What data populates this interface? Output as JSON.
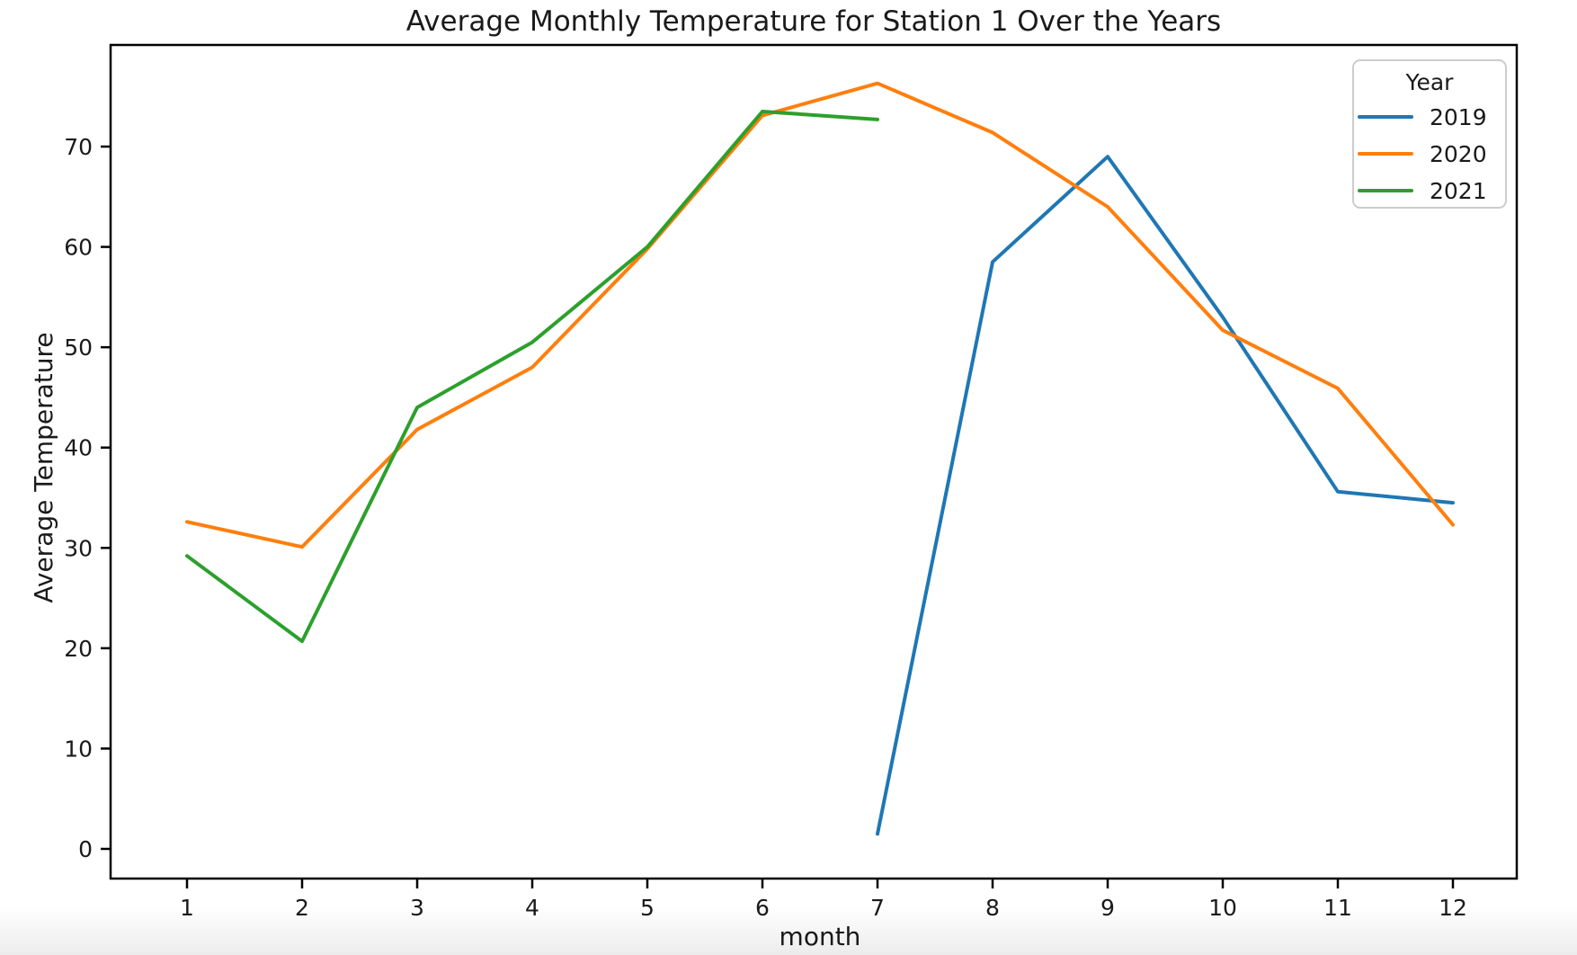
{
  "chart_data": {
    "type": "line",
    "title": "Average Monthly Temperature for Station 1 Over the Years",
    "xlabel": "month",
    "ylabel": "Average Temperature",
    "x": [
      1,
      2,
      3,
      4,
      5,
      6,
      7,
      8,
      9,
      10,
      11,
      12
    ],
    "series": [
      {
        "name": "2019",
        "color": "#1f77b4",
        "values": [
          null,
          null,
          null,
          null,
          null,
          null,
          1.5,
          58.5,
          69.0,
          53.0,
          35.6,
          34.5
        ]
      },
      {
        "name": "2020",
        "color": "#ff7f0e",
        "values": [
          32.6,
          30.1,
          41.8,
          48.0,
          59.8,
          73.1,
          76.3,
          71.4,
          64.0,
          51.7,
          45.9,
          32.3
        ]
      },
      {
        "name": "2021",
        "color": "#2ca02c",
        "values": [
          29.2,
          20.7,
          44.0,
          50.5,
          60.0,
          73.5,
          72.7,
          null,
          null,
          null,
          null,
          null
        ]
      }
    ],
    "xticks": [
      "1",
      "2",
      "3",
      "4",
      "5",
      "6",
      "7",
      "8",
      "9",
      "10",
      "11",
      "12"
    ],
    "yticks": [
      "0",
      "10",
      "20",
      "30",
      "40",
      "50",
      "60",
      "70"
    ],
    "xlim": [
      0.34,
      12.55
    ],
    "ylim": [
      -3.0,
      80.1
    ],
    "grid": false,
    "legend": {
      "title": "Year",
      "position": "upper right",
      "entries": [
        "2019",
        "2020",
        "2021"
      ]
    },
    "axis_color": "#000000",
    "text_color": "#1a1a1a",
    "background": "#ffffff"
  }
}
